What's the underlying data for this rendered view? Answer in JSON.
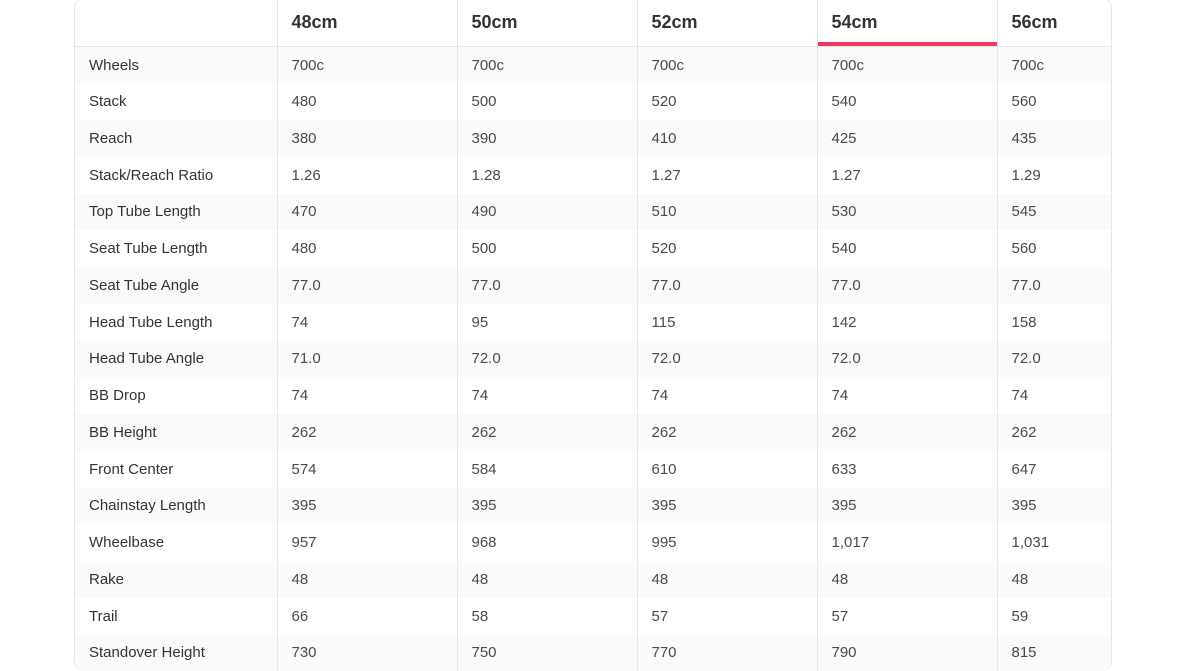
{
  "table": {
    "headers": [
      "",
      "48cm",
      "50cm",
      "52cm",
      "54cm",
      "56cm"
    ],
    "selected_size": "54cm",
    "accent_color": "#f0395a",
    "rows": [
      {
        "label": "Wheels",
        "values": [
          "700c",
          "700c",
          "700c",
          "700c",
          "700c"
        ]
      },
      {
        "label": "Stack",
        "values": [
          "480",
          "500",
          "520",
          "540",
          "560"
        ]
      },
      {
        "label": "Reach",
        "values": [
          "380",
          "390",
          "410",
          "425",
          "435"
        ]
      },
      {
        "label": "Stack/Reach Ratio",
        "values": [
          "1.26",
          "1.28",
          "1.27",
          "1.27",
          "1.29"
        ]
      },
      {
        "label": "Top Tube Length",
        "values": [
          "470",
          "490",
          "510",
          "530",
          "545"
        ]
      },
      {
        "label": "Seat Tube Length",
        "values": [
          "480",
          "500",
          "520",
          "540",
          "560"
        ]
      },
      {
        "label": "Seat Tube Angle",
        "values": [
          "77.0",
          "77.0",
          "77.0",
          "77.0",
          "77.0"
        ]
      },
      {
        "label": "Head Tube Length",
        "values": [
          "74",
          "95",
          "115",
          "142",
          "158"
        ]
      },
      {
        "label": "Head Tube Angle",
        "values": [
          "71.0",
          "72.0",
          "72.0",
          "72.0",
          "72.0"
        ]
      },
      {
        "label": "BB Drop",
        "values": [
          "74",
          "74",
          "74",
          "74",
          "74"
        ]
      },
      {
        "label": "BB Height",
        "values": [
          "262",
          "262",
          "262",
          "262",
          "262"
        ]
      },
      {
        "label": "Front Center",
        "values": [
          "574",
          "584",
          "610",
          "633",
          "647"
        ]
      },
      {
        "label": "Chainstay Length",
        "values": [
          "395",
          "395",
          "395",
          "395",
          "395"
        ]
      },
      {
        "label": "Wheelbase",
        "values": [
          "957",
          "968",
          "995",
          "1,017",
          "1,031"
        ]
      },
      {
        "label": "Rake",
        "values": [
          "48",
          "48",
          "48",
          "48",
          "48"
        ]
      },
      {
        "label": "Trail",
        "values": [
          "66",
          "58",
          "57",
          "57",
          "59"
        ]
      },
      {
        "label": "Standover Height",
        "values": [
          "730",
          "750",
          "770",
          "790",
          "815"
        ]
      }
    ]
  }
}
